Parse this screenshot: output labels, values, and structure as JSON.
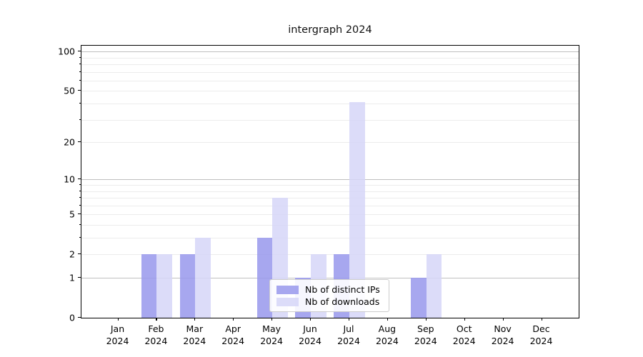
{
  "window": {
    "background": "#ffffff"
  },
  "chart_data": {
    "type": "bar",
    "title": "intergraph 2024",
    "categories": [
      "Jan",
      "Feb",
      "Mar",
      "Apr",
      "May",
      "Jun",
      "Jul",
      "Aug",
      "Sep",
      "Oct",
      "Nov",
      "Dec"
    ],
    "x_tick_second_line": "2024",
    "series": [
      {
        "name": "Nb of distinct IPs",
        "color": "#9898ec",
        "alpha": 0.85,
        "values": [
          0,
          2,
          2,
          0,
          3,
          1,
          2,
          0,
          1,
          0,
          0,
          0
        ]
      },
      {
        "name": "Nb of downloads",
        "color": "#d6d6f8",
        "alpha": 0.85,
        "values": [
          0,
          2,
          3,
          0,
          7,
          2,
          41,
          0,
          2,
          0,
          0,
          0
        ]
      }
    ],
    "xlabel": "",
    "ylabel": "",
    "yscale": "log1p",
    "ylim": [
      0,
      110
    ],
    "yticks": [
      0,
      1,
      2,
      5,
      10,
      20,
      50,
      100
    ],
    "ytick_labels": [
      "0",
      "1",
      "2",
      "5",
      "10",
      "20",
      "50",
      "100"
    ],
    "grid": {
      "shown": true,
      "major_values": [
        1,
        10,
        100
      ],
      "minor_values": [
        2,
        3,
        4,
        5,
        6,
        7,
        8,
        9,
        20,
        30,
        40,
        50,
        60,
        70,
        80,
        90
      ],
      "major_color": "#bfbfbf",
      "minor_color": "#ececec"
    },
    "legend": {
      "position": "lower center",
      "entries": [
        "Nb of distinct IPs",
        "Nb of downloads"
      ]
    },
    "axis_color": "#000000",
    "text_color": "#000000"
  }
}
